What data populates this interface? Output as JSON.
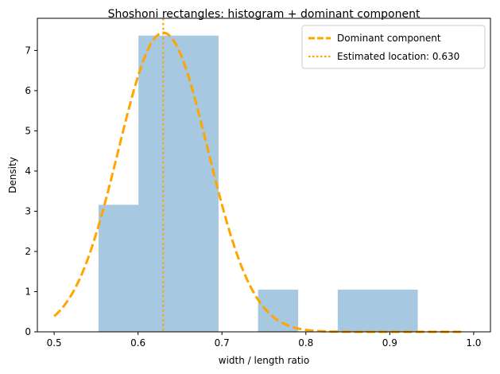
{
  "chart_data": {
    "type": "bar",
    "title": "Shoshoni rectangles: histogram + dominant component",
    "xlabel": "width / length ratio",
    "ylabel": "Density",
    "xlim": [
      0.48,
      1.02
    ],
    "ylim": [
      0,
      7.8
    ],
    "x_ticks": [
      0.5,
      0.6,
      0.7,
      0.8,
      0.9,
      1.0
    ],
    "x_tick_labels": [
      "0.5",
      "0.6",
      "0.7",
      "0.8",
      "0.9",
      "1.0"
    ],
    "y_ticks": [
      0,
      1,
      2,
      3,
      4,
      5,
      6,
      7
    ],
    "y_tick_labels": [
      "0",
      "1",
      "2",
      "3",
      "4",
      "5",
      "6",
      "7"
    ],
    "histogram": {
      "bin_edges": [
        0.553,
        0.6005,
        0.648,
        0.6955,
        0.743,
        0.7905,
        0.838,
        0.8855,
        0.933
      ],
      "densities": [
        3.16,
        7.37,
        7.37,
        0,
        1.05,
        0,
        1.05,
        1.05
      ],
      "color": "#a6c8e0"
    },
    "curve": {
      "name": "Dominant component",
      "mean": 0.63,
      "sd": 0.0535,
      "weight": 0.998,
      "x_start": 0.5,
      "x_end": 0.985,
      "color": "#ffa500"
    },
    "vline": {
      "x": 0.63,
      "color": "#ffa500"
    },
    "legend": {
      "position": "top-right",
      "entries": [
        "Dominant component",
        "Estimated location: 0.630"
      ]
    }
  }
}
